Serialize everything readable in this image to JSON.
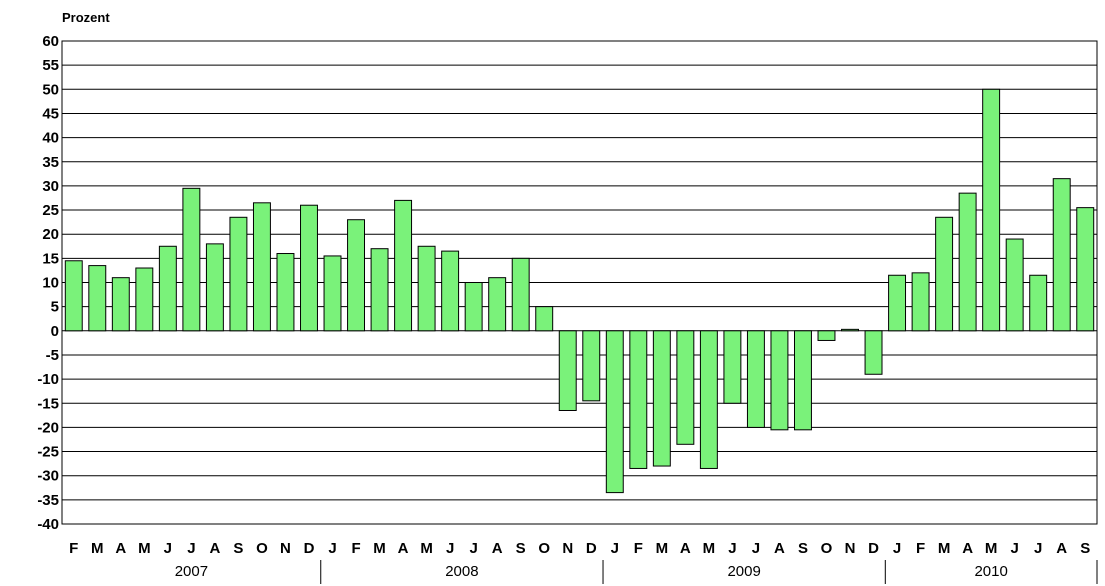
{
  "chart_data": {
    "type": "bar",
    "ylabel": "Prozent",
    "ylim": [
      -40,
      60
    ],
    "yticks": [
      60,
      55,
      50,
      45,
      40,
      35,
      30,
      25,
      20,
      15,
      10,
      5,
      0,
      -5,
      -10,
      -15,
      -20,
      -25,
      -30,
      -35,
      -40
    ],
    "grid": true,
    "bar_color": "#7af27a",
    "categories": [
      "F",
      "M",
      "A",
      "M",
      "J",
      "J",
      "A",
      "S",
      "O",
      "N",
      "D",
      "J",
      "F",
      "M",
      "A",
      "M",
      "J",
      "J",
      "A",
      "S",
      "O",
      "N",
      "D",
      "J",
      "F",
      "M",
      "A",
      "M",
      "J",
      "J",
      "A",
      "S",
      "O",
      "N",
      "D",
      "J",
      "F",
      "M",
      "A",
      "M",
      "J",
      "J",
      "A",
      "S"
    ],
    "values": [
      14.5,
      13.5,
      11,
      13,
      17.5,
      29.5,
      18,
      23.5,
      26.5,
      16,
      26,
      15.5,
      23,
      17,
      27,
      17.5,
      16.5,
      10,
      11,
      15,
      5,
      -16.5,
      -14.5,
      -33.5,
      -28.5,
      -28,
      -23.5,
      -28.5,
      -15,
      -20,
      -20.5,
      -20.5,
      -2,
      0.3,
      -9,
      11.5,
      12,
      23.5,
      28.5,
      50,
      19,
      11.5,
      31.5,
      25.5
    ],
    "years": [
      {
        "label": "2007",
        "start": 0,
        "end": 11
      },
      {
        "label": "2008",
        "start": 11,
        "end": 23
      },
      {
        "label": "2009",
        "start": 23,
        "end": 35
      },
      {
        "label": "2010",
        "start": 35,
        "end": 44
      }
    ]
  }
}
